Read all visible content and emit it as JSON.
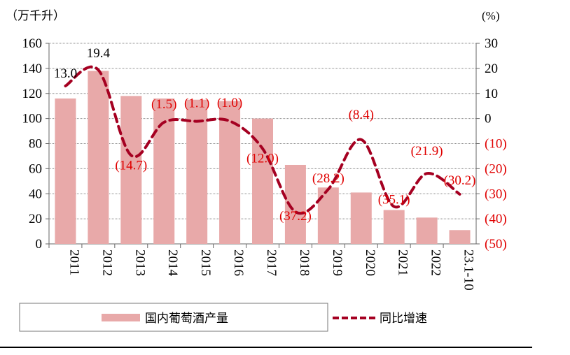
{
  "chart_data": {
    "type": "bar+line",
    "categories": [
      "2011",
      "2012",
      "2013",
      "2014",
      "2015",
      "2016",
      "2017",
      "2018",
      "2019",
      "2020",
      "2021",
      "2022",
      "23.1-10"
    ],
    "left_unit": "（万千升）",
    "right_unit": "(%)",
    "left_ylim": [
      0,
      160
    ],
    "left_ticks": [
      "0",
      "20",
      "40",
      "60",
      "80",
      "100",
      "120",
      "140",
      "160"
    ],
    "right_ylim": [
      -50,
      30
    ],
    "right_ticks": [
      "(50)",
      "(40)",
      "(30)",
      "(20)",
      "(10)",
      "0",
      "10",
      "20",
      "30"
    ],
    "grid": true,
    "legend_position": "bottom",
    "series": [
      {
        "name": "国内葡萄酒产量",
        "type": "bar",
        "axis": "left",
        "color": "#e8a9a9",
        "values": [
          116,
          138,
          118,
          116,
          115,
          114,
          100,
          63,
          45,
          41,
          27,
          21,
          11
        ]
      },
      {
        "name": "同比增速",
        "type": "line",
        "axis": "right",
        "color": "#a50021",
        "style": "dashed",
        "values": [
          13.0,
          19.4,
          -14.7,
          -1.5,
          -1.1,
          -1.0,
          -12.0,
          -37.2,
          -28.2,
          -8.4,
          -35.1,
          -21.9,
          -30.2
        ],
        "labels": [
          "13.0",
          "19.4",
          "(14.7)",
          "(1.5)",
          "(1.1)",
          "(1.0)",
          "(12.0)",
          "(37.2)",
          "(28.2)",
          "(8.4)",
          "(35.1)",
          "(21.9)",
          "(30.2)"
        ]
      }
    ]
  }
}
